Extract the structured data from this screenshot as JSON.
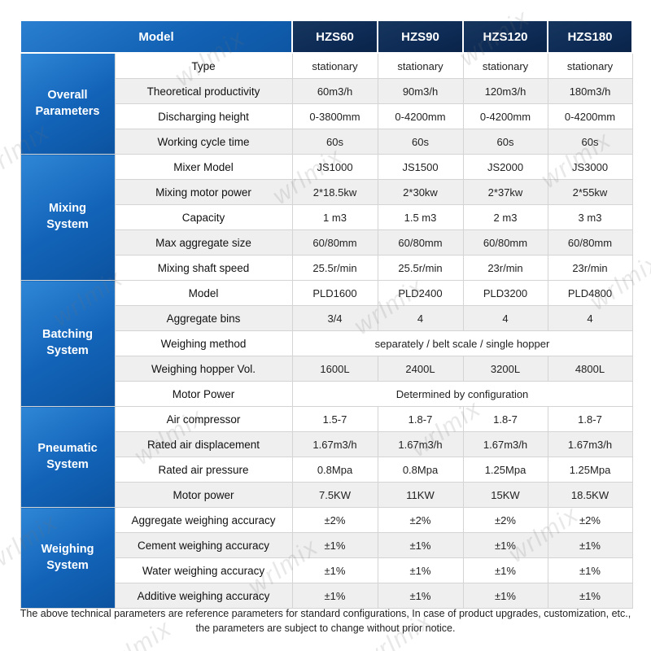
{
  "watermark": "wrlmix",
  "table": {
    "header": {
      "model_label": "Model",
      "columns": [
        "HZS60",
        "HZS90",
        "HZS120",
        "HZS180"
      ]
    },
    "groups": [
      {
        "name_lines": [
          "Overall",
          "Parameters"
        ],
        "rows": [
          {
            "param": "Type",
            "values": [
              "stationary",
              "stationary",
              "stationary",
              "stationary"
            ]
          },
          {
            "param": "Theoretical productivity",
            "values": [
              "60m3/h",
              "90m3/h",
              "120m3/h",
              "180m3/h"
            ]
          },
          {
            "param": "Discharging height",
            "values": [
              "0-3800mm",
              "0-4200mm",
              "0-4200mm",
              "0-4200mm"
            ]
          },
          {
            "param": "Working cycle time",
            "values": [
              "60s",
              "60s",
              "60s",
              "60s"
            ]
          }
        ]
      },
      {
        "name_lines": [
          "Mixing",
          "System"
        ],
        "rows": [
          {
            "param": "Mixer Model",
            "values": [
              "JS1000",
              "JS1500",
              "JS2000",
              "JS3000"
            ]
          },
          {
            "param": "Mixing motor power",
            "values": [
              "2*18.5kw",
              "2*30kw",
              "2*37kw",
              "2*55kw"
            ]
          },
          {
            "param": "Capacity",
            "values": [
              "1 m3",
              "1.5 m3",
              "2 m3",
              "3 m3"
            ]
          },
          {
            "param": "Max aggregate size",
            "values": [
              "60/80mm",
              "60/80mm",
              "60/80mm",
              "60/80mm"
            ]
          },
          {
            "param": "Mixing shaft speed",
            "values": [
              "25.5r/min",
              "25.5r/min",
              "23r/min",
              "23r/min"
            ]
          }
        ]
      },
      {
        "name_lines": [
          "Batching",
          "System"
        ],
        "rows": [
          {
            "param": "Model",
            "values": [
              "PLD1600",
              "PLD2400",
              "PLD3200",
              "PLD4800"
            ]
          },
          {
            "param": "Aggregate bins",
            "values": [
              "3/4",
              "4",
              "4",
              "4"
            ]
          },
          {
            "param": "Weighing method",
            "span": true,
            "values": [
              "separately  / belt scale / single hopper"
            ]
          },
          {
            "param": "Weighing hopper Vol.",
            "values": [
              "1600L",
              "2400L",
              "3200L",
              "4800L"
            ]
          },
          {
            "param": "Motor Power",
            "span": true,
            "values": [
              "Determined by configuration"
            ]
          }
        ]
      },
      {
        "name_lines": [
          "Pneumatic",
          "System"
        ],
        "rows": [
          {
            "param": "Air compressor",
            "values": [
              "1.5-7",
              "1.8-7",
              "1.8-7",
              "1.8-7"
            ]
          },
          {
            "param": "Rated air displacement",
            "values": [
              "1.67m3/h",
              "1.67m3/h",
              "1.67m3/h",
              "1.67m3/h"
            ]
          },
          {
            "param": "Rated air pressure",
            "values": [
              "0.8Mpa",
              "0.8Mpa",
              "1.25Mpa",
              "1.25Mpa"
            ]
          },
          {
            "param": "Motor power",
            "values": [
              "7.5KW",
              "11KW",
              "15KW",
              "18.5KW"
            ]
          }
        ]
      },
      {
        "name_lines": [
          "Weighing",
          "System"
        ],
        "rows": [
          {
            "param": "Aggregate weighing accuracy",
            "values": [
              "±2%",
              "±2%",
              "±2%",
              "±2%"
            ]
          },
          {
            "param": "Cement weighing accuracy",
            "values": [
              "±1%",
              "±1%",
              "±1%",
              "±1%"
            ]
          },
          {
            "param": "Water weighing accuracy",
            "values": [
              "±1%",
              "±1%",
              "±1%",
              "±1%"
            ]
          },
          {
            "param": "Additive weighing accuracy",
            "values": [
              "±1%",
              "±1%",
              "±1%",
              "±1%"
            ]
          }
        ]
      }
    ]
  },
  "footer": {
    "line1": "The above technical parameters are reference parameters for standard configurations, In case of  product upgrades, customization, etc.,",
    "line2": "the parameters are subject to change without prior notice."
  }
}
